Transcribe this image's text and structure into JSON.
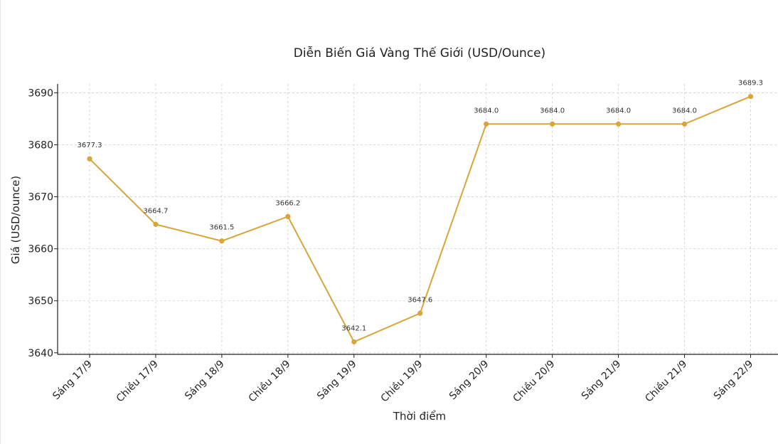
{
  "chart_data": {
    "type": "line",
    "title": "Diễn Biến Giá Vàng Thế Giới (USD/Ounce)",
    "xlabel": "Thời điểm",
    "ylabel": "Giá (USD/ounce)",
    "categories": [
      "Sáng 17/9",
      "Chiều 17/9",
      "Sáng 18/9",
      "Chiều 18/9",
      "Sáng 19/9",
      "Chiều 19/9",
      "Sáng 20/9",
      "Chiều 20/9",
      "Sáng 21/9",
      "Chiều 21/9",
      "Sáng 22/9"
    ],
    "series": [
      {
        "values": [
          3677.3,
          3664.7,
          3661.5,
          3666.2,
          3642.1,
          3647.6,
          3684.0,
          3684.0,
          3684.0,
          3684.0,
          3689.3
        ],
        "labels": [
          "3677.3",
          "3664.7",
          "3661.5",
          "3666.2",
          "3642.1",
          "3647.6",
          "3684.0",
          "3684.0",
          "3684.0",
          "3684.0",
          "3689.3"
        ],
        "color": "#D9A43A"
      }
    ],
    "yticks": [
      3640,
      3650,
      3660,
      3670,
      3680,
      3690
    ],
    "ytick_labels": [
      "3640",
      "3650",
      "3660",
      "3670",
      "3680",
      "3690"
    ],
    "ylim": [
      3639.7,
      3691.7
    ],
    "grid": true,
    "colors": {
      "line": "#D9A43A",
      "grid": "#cfcfcf",
      "axis": "#222222"
    }
  }
}
